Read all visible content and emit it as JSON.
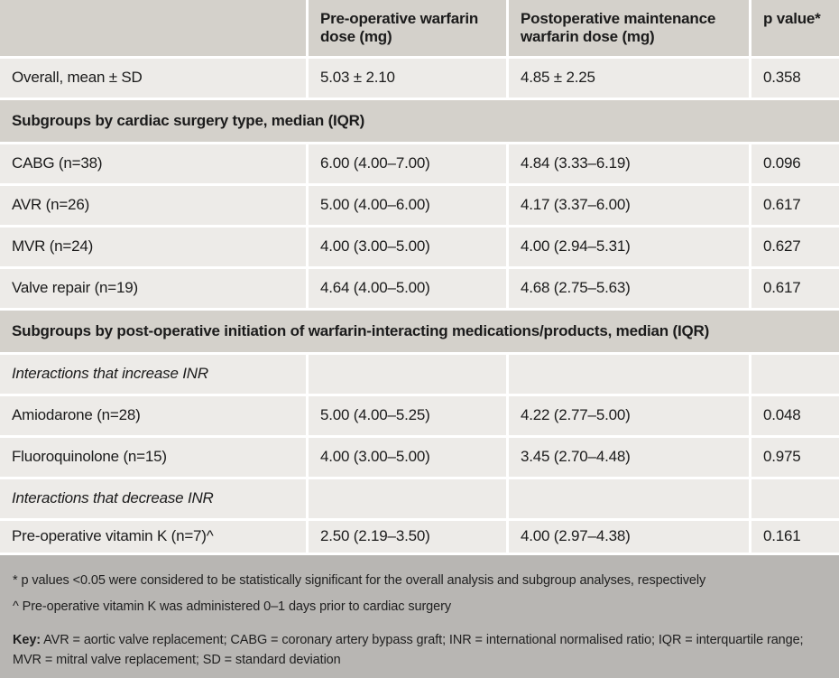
{
  "colors": {
    "header_bg": "#d4d1cb",
    "section_bg": "#d4d1cb",
    "row_bg": "#edebe8",
    "gap": "#ffffff",
    "divider": "#2b2a27",
    "footnote_bg": "#b8b6b3",
    "text": "#1b1b1b"
  },
  "table": {
    "columns": [
      "",
      "Pre-operative warfarin dose (mg)",
      "Postoperative maintenance warfarin dose (mg)",
      "p value*"
    ],
    "rows": [
      {
        "type": "data",
        "label": "Overall, mean ± SD",
        "pre": "5.03 ± 2.10",
        "post": "4.85 ± 2.25",
        "p": "0.358"
      },
      {
        "type": "section",
        "label": "Subgroups by cardiac surgery type, median (IQR)"
      },
      {
        "type": "data",
        "label": "CABG (n=38)",
        "pre": "6.00 (4.00–7.00)",
        "post": "4.84 (3.33–6.19)",
        "p": "0.096"
      },
      {
        "type": "data",
        "label": "AVR (n=26)",
        "pre": "5.00 (4.00–6.00)",
        "post": "4.17 (3.37–6.00)",
        "p": "0.617"
      },
      {
        "type": "data",
        "label": "MVR (n=24)",
        "pre": "4.00 (3.00–5.00)",
        "post": "4.00 (2.94–5.31)",
        "p": "0.627"
      },
      {
        "type": "data",
        "label": "Valve repair (n=19)",
        "pre": "4.64 (4.00–5.00)",
        "post": "4.68 (2.75–5.63)",
        "p": "0.617"
      },
      {
        "type": "section",
        "label": "Subgroups by post-operative initiation of warfarin-interacting medications/products, median (IQR)"
      },
      {
        "type": "subhead",
        "label": "Interactions that increase INR",
        "pre": "",
        "post": "",
        "p": ""
      },
      {
        "type": "data",
        "label": "Amiodarone (n=28)",
        "pre": "5.00 (4.00–5.25)",
        "post": "4.22 (2.77–5.00)",
        "p": "0.048"
      },
      {
        "type": "data",
        "label": "Fluoroquinolone (n=15)",
        "pre": "4.00 (3.00–5.00)",
        "post": "3.45 (2.70–4.48)",
        "p": "0.975"
      },
      {
        "type": "subhead",
        "label": "Interactions that decrease INR",
        "pre": "",
        "post": "",
        "p": ""
      },
      {
        "type": "data",
        "label": "Pre-operative vitamin K (n=7)^",
        "pre": "2.50 (2.19–3.50)",
        "post": "4.00 (2.97–4.38)",
        "p": "0.161"
      }
    ]
  },
  "footnotes": {
    "p_value_note": "* p values <0.05 were considered to be statistically significant for the overall analysis and subgroup analyses, respectively",
    "vitamin_k_note": "^ Pre-operative vitamin K was administered 0–1 days prior to cardiac surgery",
    "key_label": "Key:",
    "key_text": " AVR = aortic valve replacement; CABG = coronary artery bypass graft; INR = international normalised ratio; IQR = interquartile range; MVR = mitral valve replacement; SD = standard deviation"
  }
}
